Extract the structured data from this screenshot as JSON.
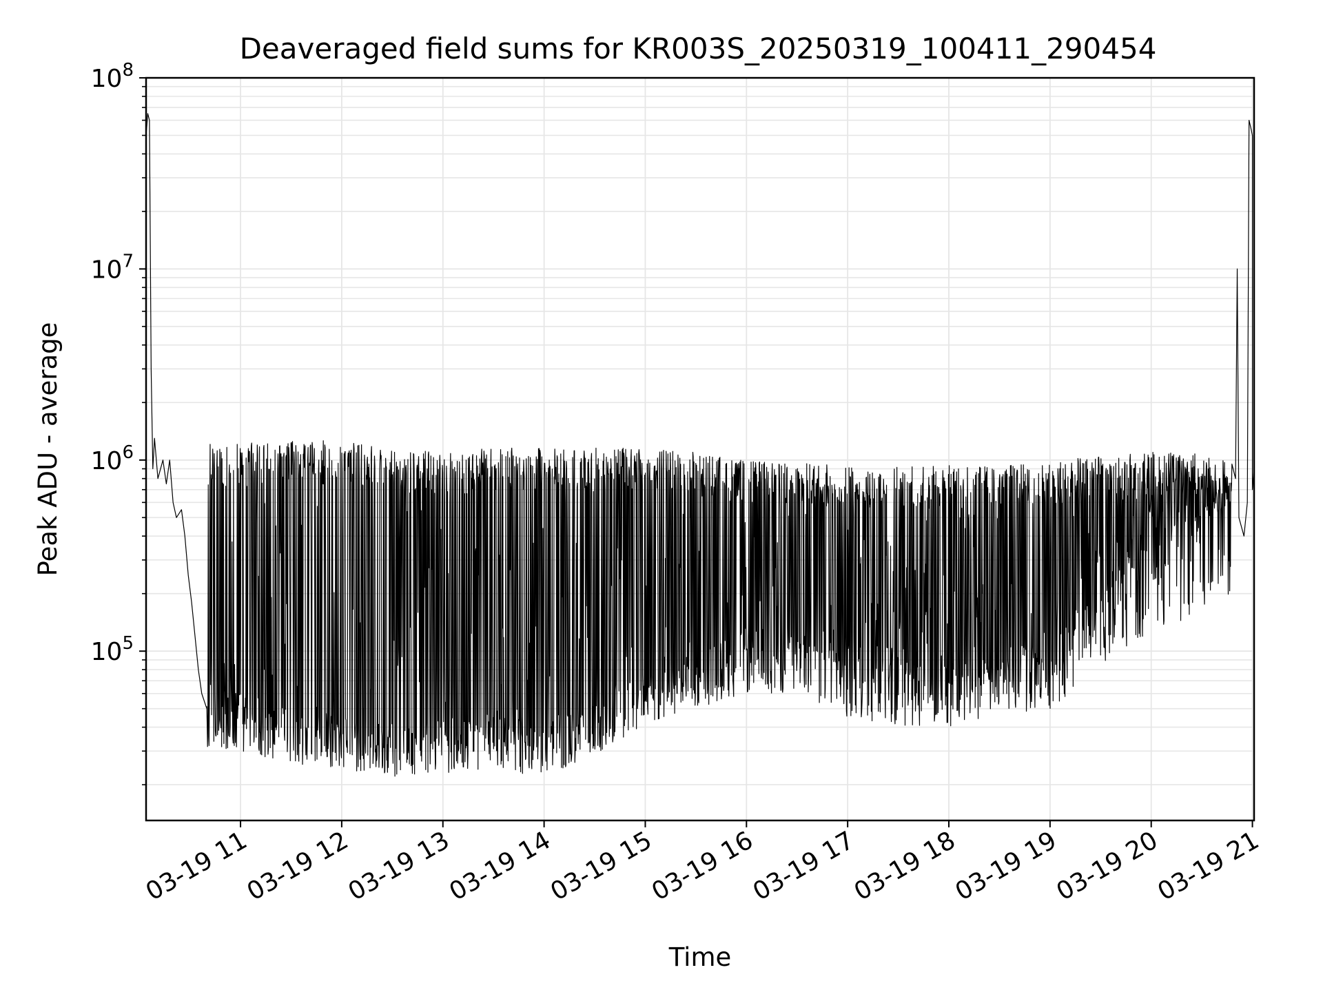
{
  "chart_data": {
    "type": "line",
    "title": "Deaveraged field sums for KR003S_20250319_100411_290454",
    "xlabel": "Time",
    "ylabel": "Peak ADU - average",
    "yscale": "log",
    "ylim": [
      13000,
      100000000
    ],
    "xlim": [
      "2025-03-19 10:04",
      "2025-03-19 21:01"
    ],
    "grid": true,
    "line_color": "#000000",
    "x_ticks": [
      {
        "t": "2025-03-19 11:00",
        "label": "03-19 11"
      },
      {
        "t": "2025-03-19 12:00",
        "label": "03-19 12"
      },
      {
        "t": "2025-03-19 13:00",
        "label": "03-19 13"
      },
      {
        "t": "2025-03-19 14:00",
        "label": "03-19 14"
      },
      {
        "t": "2025-03-19 15:00",
        "label": "03-19 15"
      },
      {
        "t": "2025-03-19 16:00",
        "label": "03-19 16"
      },
      {
        "t": "2025-03-19 17:00",
        "label": "03-19 17"
      },
      {
        "t": "2025-03-19 18:00",
        "label": "03-19 18"
      },
      {
        "t": "2025-03-19 19:00",
        "label": "03-19 19"
      },
      {
        "t": "2025-03-19 20:00",
        "label": "03-19 20"
      },
      {
        "t": "2025-03-19 21:00",
        "label": "03-19 21"
      }
    ],
    "y_ticks": [
      {
        "v": 100000,
        "mantissa": "10",
        "exp": "5"
      },
      {
        "v": 1000000,
        "mantissa": "10",
        "exp": "6"
      },
      {
        "v": 10000000,
        "mantissa": "10",
        "exp": "7"
      },
      {
        "v": 100000000,
        "mantissa": "10",
        "exp": "8"
      }
    ],
    "series": [
      {
        "points": [
          [
            "2025-03-19 10:04",
            1800000
          ],
          [
            "2025-03-19 10:04",
            50000000
          ],
          [
            "2025-03-19 10:05",
            65000000
          ],
          [
            "2025-03-19 10:06",
            60000000
          ],
          [
            "2025-03-19 10:07",
            3000000
          ],
          [
            "2025-03-19 10:08",
            900000
          ],
          [
            "2025-03-19 10:09",
            1300000
          ],
          [
            "2025-03-19 10:11",
            800000
          ],
          [
            "2025-03-19 10:14",
            1000000
          ],
          [
            "2025-03-19 10:16",
            750000
          ],
          [
            "2025-03-19 10:18",
            1000000
          ],
          [
            "2025-03-19 10:20",
            600000
          ],
          [
            "2025-03-19 10:22",
            500000
          ],
          [
            "2025-03-19 10:25",
            550000
          ],
          [
            "2025-03-19 10:27",
            400000
          ],
          [
            "2025-03-19 10:29",
            250000
          ],
          [
            "2025-03-19 10:31",
            180000
          ],
          [
            "2025-03-19 10:33",
            120000
          ],
          [
            "2025-03-19 10:35",
            80000
          ],
          [
            "2025-03-19 10:37",
            60000
          ],
          [
            "2025-03-19 10:40",
            50000
          ],
          [
            "2025-03-19 10:45",
            45000
          ],
          [
            "2025-03-19 10:50",
            48000
          ],
          [
            "2025-03-19 11:00",
            42000
          ],
          [
            "2025-03-19 11:30",
            36000
          ],
          [
            "2025-03-19 12:00",
            33000
          ],
          [
            "2025-03-19 12:30",
            30000
          ],
          [
            "2025-03-19 13:00",
            32000
          ],
          [
            "2025-03-19 13:30",
            33000
          ],
          [
            "2025-03-19 14:00",
            31000
          ],
          [
            "2025-03-19 14:30",
            40000
          ],
          [
            "2025-03-19 15:00",
            55000
          ],
          [
            "2025-03-19 15:30",
            70000
          ],
          [
            "2025-03-19 16:00",
            95000
          ],
          [
            "2025-03-19 16:30",
            100000
          ],
          [
            "2025-03-19 17:00",
            85000
          ],
          [
            "2025-03-19 17:30",
            75000
          ],
          [
            "2025-03-19 18:00",
            70000
          ],
          [
            "2025-03-19 18:30",
            75000
          ],
          [
            "2025-03-19 19:00",
            80000
          ],
          [
            "2025-03-19 19:30",
            150000
          ],
          [
            "2025-03-19 19:45",
            250000
          ],
          [
            "2025-03-19 20:00",
            400000
          ],
          [
            "2025-03-19 20:30",
            500000
          ],
          [
            "2025-03-19 20:48",
            550000
          ],
          [
            "2025-03-19 20:50",
            800000
          ],
          [
            "2025-03-19 20:51",
            10000000
          ],
          [
            "2025-03-19 20:52",
            500000
          ],
          [
            "2025-03-19 20:55",
            400000
          ],
          [
            "2025-03-19 20:57",
            600000
          ],
          [
            "2025-03-19 20:58",
            60000000
          ],
          [
            "2025-03-19 20:59",
            55000000
          ],
          [
            "2025-03-19 21:00",
            50000000
          ],
          [
            "2025-03-19 21:00",
            700000
          ],
          [
            "2025-03-19 21:01",
            900000
          ],
          [
            "2025-03-19 21:01",
            500000
          ]
        ],
        "spikes_upper": [
          [
            "2025-03-19 10:50",
            1100000
          ],
          [
            "2025-03-19 11:30",
            1150000
          ],
          [
            "2025-03-19 12:00",
            1150000
          ],
          [
            "2025-03-19 12:30",
            1050000
          ],
          [
            "2025-03-19 13:00",
            1000000
          ],
          [
            "2025-03-19 13:30",
            1050000
          ],
          [
            "2025-03-19 14:00",
            1050000
          ],
          [
            "2025-03-19 14:30",
            1050000
          ],
          [
            "2025-03-19 15:00",
            1050000
          ],
          [
            "2025-03-19 15:30",
            1000000
          ],
          [
            "2025-03-19 16:00",
            900000
          ],
          [
            "2025-03-19 16:30",
            880000
          ],
          [
            "2025-03-19 17:00",
            850000
          ],
          [
            "2025-03-19 17:30",
            850000
          ],
          [
            "2025-03-19 18:00",
            850000
          ],
          [
            "2025-03-19 18:30",
            850000
          ],
          [
            "2025-03-19 19:00",
            900000
          ],
          [
            "2025-03-19 19:30",
            950000
          ],
          [
            "2025-03-19 20:00",
            1000000
          ],
          [
            "2025-03-19 20:30",
            1000000
          ],
          [
            "2025-03-19 20:48",
            900000
          ]
        ],
        "spikes_lower": [
          [
            "2025-03-19 10:50",
            30000
          ],
          [
            "2025-03-19 11:30",
            26000
          ],
          [
            "2025-03-19 12:00",
            24000
          ],
          [
            "2025-03-19 12:30",
            22000
          ],
          [
            "2025-03-19 13:00",
            23000
          ],
          [
            "2025-03-19 13:30",
            24000
          ],
          [
            "2025-03-19 14:00",
            22000
          ],
          [
            "2025-03-19 14:30",
            28000
          ],
          [
            "2025-03-19 15:00",
            40000
          ],
          [
            "2025-03-19 15:30",
            50000
          ],
          [
            "2025-03-19 16:00",
            60000
          ],
          [
            "2025-03-19 16:30",
            60000
          ],
          [
            "2025-03-19 17:00",
            45000
          ],
          [
            "2025-03-19 17:30",
            40000
          ],
          [
            "2025-03-19 18:00",
            40000
          ],
          [
            "2025-03-19 18:30",
            45000
          ],
          [
            "2025-03-19 19:00",
            50000
          ],
          [
            "2025-03-19 19:30",
            80000
          ],
          [
            "2025-03-19 20:00",
            130000
          ],
          [
            "2025-03-19 20:30",
            150000
          ],
          [
            "2025-03-19 20:48",
            200000
          ]
        ]
      }
    ]
  }
}
